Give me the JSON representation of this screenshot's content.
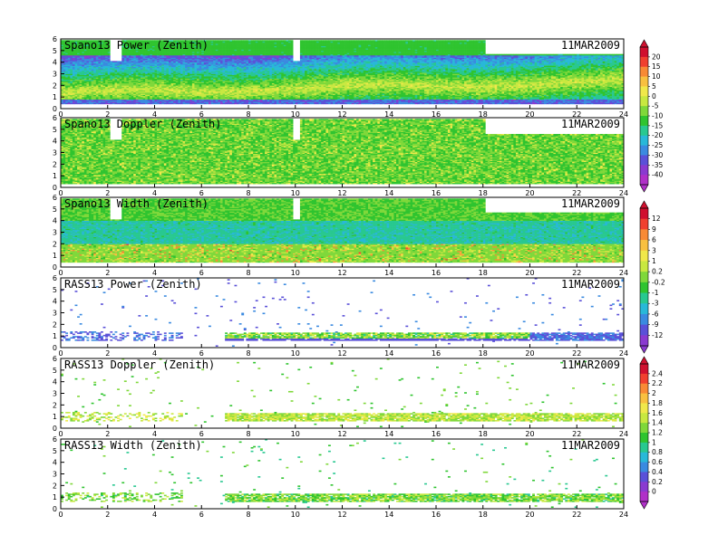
{
  "chart_data": [
    {
      "type": "heatmap",
      "title": "Spano13 Power (Zenith)",
      "date": "11MAR2009",
      "x_ticks": [
        "0",
        "2",
        "4",
        "6",
        "8",
        "10",
        "12",
        "14",
        "16",
        "18",
        "20",
        "22",
        "24"
      ],
      "y_ticks": [
        "0",
        "1",
        "2",
        "3",
        "4",
        "5",
        "6"
      ],
      "xlim": [
        0,
        24
      ],
      "ylim": [
        0,
        6
      ],
      "colorbar": "A",
      "approx_pattern": "dense echo 0.5-4.5; maximum band near 1.5-2.5 rising slowly; cold layer near 0.5; gaps at 2-2.5 and 9.8-10.1 above 4"
    },
    {
      "type": "heatmap",
      "title": "Spano13 Doppler (Zenith)",
      "date": "11MAR2009",
      "x_ticks": [
        "0",
        "2",
        "4",
        "6",
        "8",
        "10",
        "12",
        "14",
        "16",
        "18",
        "20",
        "22",
        "24"
      ],
      "y_ticks": [
        "0",
        "1",
        "2",
        "3",
        "4",
        "5",
        "6"
      ],
      "xlim": [
        0,
        24
      ],
      "ylim": [
        0,
        6
      ],
      "colorbar": "A",
      "approx_pattern": "mostly green (about -10) with yellow-green streaks"
    },
    {
      "type": "heatmap",
      "title": "Spano13 Width (Zenith)",
      "date": "11MAR2009",
      "x_ticks": [
        "0",
        "2",
        "4",
        "6",
        "8",
        "10",
        "12",
        "14",
        "16",
        "18",
        "20",
        "22",
        "24"
      ],
      "y_ticks": [
        "0",
        "1",
        "2",
        "3",
        "4",
        "5",
        "6"
      ],
      "xlim": [
        0,
        24
      ],
      "ylim": [
        0,
        6
      ],
      "colorbar": "B",
      "approx_pattern": "orange/red speckles below 2; cyan-blue band 2-4; green aloft"
    },
    {
      "type": "scatter",
      "title": "RASS13 Power (Zenith)",
      "date": "11MAR2009",
      "x_ticks": [
        "0",
        "2",
        "4",
        "6",
        "8",
        "10",
        "12",
        "14",
        "16",
        "18",
        "20",
        "22",
        "24"
      ],
      "y_ticks": [
        "0",
        "1",
        "2",
        "3",
        "4",
        "5",
        "6"
      ],
      "xlim": [
        0,
        24
      ],
      "ylim": [
        0,
        6
      ],
      "colorbar": "B",
      "approx_pattern": "purple points near 1 (0-5.2 h), green/cyan band 0.6-1.2 from 7 to 20 h, purple band 20-24 h, sparse points aloft"
    },
    {
      "type": "scatter",
      "title": "RASS13 Doppler (Zenith)",
      "date": "11MAR2009",
      "x_ticks": [
        "0",
        "2",
        "4",
        "6",
        "8",
        "10",
        "12",
        "14",
        "16",
        "18",
        "20",
        "22",
        "24"
      ],
      "y_ticks": [
        "0",
        "1",
        "2",
        "3",
        "4",
        "5",
        "6"
      ],
      "xlim": [
        0,
        24
      ],
      "ylim": [
        0,
        6
      ],
      "colorbar": "C",
      "approx_pattern": "green/yellow band 0.6-1.2 from 7 to 24 h, sparse green points 0-6 h"
    },
    {
      "type": "scatter",
      "title": "RASS13 Width (Zenith)",
      "date": "11MAR2009",
      "x_ticks": [
        "0",
        "2",
        "4",
        "6",
        "8",
        "10",
        "12",
        "14",
        "16",
        "18",
        "20",
        "22",
        "24"
      ],
      "y_ticks": [
        "0",
        "1",
        "2",
        "3",
        "4",
        "5",
        "6"
      ],
      "xlim": [
        0,
        24
      ],
      "ylim": [
        0,
        6
      ],
      "colorbar": "C",
      "approx_pattern": "green/cyan band 0.6-1.2 from 7 to 24 h, sparse points 0-6 h"
    }
  ],
  "colorbars": {
    "A": {
      "labels": [
        "20",
        "15",
        "10",
        "5",
        "0",
        "-5",
        "-10",
        "-15",
        "-20",
        "-25",
        "-30",
        "-35",
        "-40"
      ],
      "colors": [
        "#d0102f",
        "#f0402f",
        "#f88a35",
        "#f8c040",
        "#f0e84a",
        "#c8e840",
        "#7fd83a",
        "#2fc42f",
        "#28c890",
        "#28b8d8",
        "#3a8ae0",
        "#5a50d8",
        "#8a3ad0",
        "#b030c8"
      ]
    },
    "B": {
      "labels": [
        "12",
        "9",
        "6",
        "3",
        "1",
        "0.2",
        "-0.2",
        "-1",
        "-3",
        "-6",
        "-9",
        "-12"
      ],
      "colors": [
        "#d0102f",
        "#f0402f",
        "#f88a35",
        "#f8c040",
        "#f0e84a",
        "#c8e840",
        "#7fd83a",
        "#2fc42f",
        "#28c890",
        "#28b8d8",
        "#3a8ae0",
        "#5a50d8",
        "#8a3ad0"
      ]
    },
    "C": {
      "labels": [
        "2.4",
        "2.2",
        "2",
        "1.8",
        "1.6",
        "1.4",
        "1.2",
        "1",
        "0.8",
        "0.6",
        "0.4",
        "0.2",
        "0"
      ],
      "colors": [
        "#d0102f",
        "#f0402f",
        "#f88a35",
        "#f8c040",
        "#f0e84a",
        "#c8e840",
        "#7fd83a",
        "#2fc42f",
        "#28c890",
        "#28b8d8",
        "#3a8ae0",
        "#5a50d8",
        "#8a3ad0",
        "#b030c8"
      ]
    }
  }
}
